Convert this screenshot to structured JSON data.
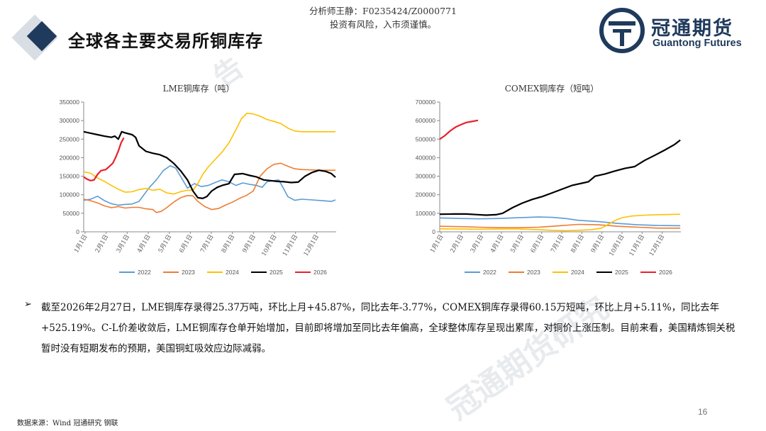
{
  "header": {
    "analyst": "分析师王静：F0235424/Z0000771",
    "risk_notice": "投资有风险，入市须谨慎。",
    "page_title": "全球各主要交易所铜库存"
  },
  "logo": {
    "name_cn": "冠通期货",
    "name_en": "Guantong Futures",
    "brand_color": "#1f3a5c"
  },
  "watermark": {
    "text_1": "告",
    "text_2": "冠通期货研究"
  },
  "series_colors": {
    "2022": "#5b9bd5",
    "2023": "#ed7d31",
    "2024": "#ffc000",
    "2025": "#000000",
    "2026": "#e8212b"
  },
  "chart_data": [
    {
      "type": "line",
      "title": "LME铜库存（吨）",
      "ylim": [
        0,
        350000
      ],
      "yticks": [
        "0",
        "50000",
        "100000",
        "150000",
        "200000",
        "250000",
        "300000",
        "350000"
      ],
      "xticks": [
        "1月1日",
        "2月1日",
        "3月1日",
        "4月1日",
        "5月1日",
        "6月1日",
        "7月1日",
        "8月1日",
        "9月1日",
        "10月1日",
        "11月1日",
        "12月1日"
      ],
      "x_days": 365,
      "legend_position": "bottom",
      "series": [
        {
          "name": "2022",
          "points": [
            [
              0,
              85000
            ],
            [
              10,
              88000
            ],
            [
              20,
              96000
            ],
            [
              30,
              84000
            ],
            [
              40,
              76000
            ],
            [
              50,
              72000
            ],
            [
              60,
              74000
            ],
            [
              70,
              75000
            ],
            [
              80,
              82000
            ],
            [
              95,
              120000
            ],
            [
              105,
              140000
            ],
            [
              115,
              165000
            ],
            [
              125,
              178000
            ],
            [
              133,
              172000
            ],
            [
              140,
              150000
            ],
            [
              150,
              118000
            ],
            [
              160,
              130000
            ],
            [
              170,
              122000
            ],
            [
              180,
              125000
            ],
            [
              190,
              133000
            ],
            [
              200,
              140000
            ],
            [
              210,
              135000
            ],
            [
              220,
              125000
            ],
            [
              230,
              132000
            ],
            [
              240,
              128000
            ],
            [
              250,
              125000
            ],
            [
              258,
              120000
            ],
            [
              265,
              135000
            ],
            [
              275,
              138000
            ],
            [
              282,
              140000
            ],
            [
              288,
              120000
            ],
            [
              295,
              95000
            ],
            [
              305,
              85000
            ],
            [
              315,
              88000
            ],
            [
              330,
              86000
            ],
            [
              345,
              84000
            ],
            [
              358,
              82000
            ],
            [
              364,
              86000
            ]
          ]
        },
        {
          "name": "2023",
          "points": [
            [
              0,
              88000
            ],
            [
              10,
              84000
            ],
            [
              20,
              78000
            ],
            [
              30,
              70000
            ],
            [
              40,
              65000
            ],
            [
              50,
              68000
            ],
            [
              60,
              64000
            ],
            [
              70,
              66000
            ],
            [
              80,
              66000
            ],
            [
              90,
              62000
            ],
            [
              100,
              60000
            ],
            [
              105,
              52000
            ],
            [
              112,
              55000
            ],
            [
              120,
              65000
            ],
            [
              130,
              80000
            ],
            [
              140,
              92000
            ],
            [
              150,
              98000
            ],
            [
              158,
              97000
            ],
            [
              165,
              82000
            ],
            [
              175,
              68000
            ],
            [
              185,
              60000
            ],
            [
              195,
              63000
            ],
            [
              205,
              72000
            ],
            [
              215,
              80000
            ],
            [
              225,
              90000
            ],
            [
              235,
              98000
            ],
            [
              245,
              110000
            ],
            [
              255,
              150000
            ],
            [
              265,
              170000
            ],
            [
              275,
              182000
            ],
            [
              285,
              185000
            ],
            [
              295,
              177000
            ],
            [
              305,
              170000
            ],
            [
              315,
              168000
            ],
            [
              330,
              167000
            ],
            [
              345,
              166000
            ],
            [
              364,
              166000
            ]
          ]
        },
        {
          "name": "2024",
          "points": [
            [
              0,
              162000
            ],
            [
              10,
              158000
            ],
            [
              20,
              145000
            ],
            [
              30,
              136000
            ],
            [
              40,
              125000
            ],
            [
              50,
              115000
            ],
            [
              60,
              107000
            ],
            [
              70,
              108000
            ],
            [
              80,
              114000
            ],
            [
              90,
              117000
            ],
            [
              100,
              112000
            ],
            [
              110,
              115000
            ],
            [
              120,
              105000
            ],
            [
              130,
              102000
            ],
            [
              140,
              108000
            ],
            [
              150,
              112000
            ],
            [
              158,
              112000
            ],
            [
              165,
              130000
            ],
            [
              172,
              155000
            ],
            [
              180,
              175000
            ],
            [
              190,
              195000
            ],
            [
              200,
              215000
            ],
            [
              210,
              240000
            ],
            [
              220,
              275000
            ],
            [
              228,
              305000
            ],
            [
              236,
              320000
            ],
            [
              245,
              318000
            ],
            [
              255,
              312000
            ],
            [
              265,
              303000
            ],
            [
              275,
              298000
            ],
            [
              285,
              292000
            ],
            [
              295,
              280000
            ],
            [
              305,
              272000
            ],
            [
              315,
              270000
            ],
            [
              330,
              270000
            ],
            [
              345,
              270000
            ],
            [
              364,
              270000
            ]
          ]
        },
        {
          "name": "2025",
          "points": [
            [
              0,
              270000
            ],
            [
              10,
              266000
            ],
            [
              20,
              262000
            ],
            [
              30,
              258000
            ],
            [
              40,
              255000
            ],
            [
              45,
              258000
            ],
            [
              50,
              250000
            ],
            [
              55,
              270000
            ],
            [
              60,
              267000
            ],
            [
              70,
              262000
            ],
            [
              75,
              255000
            ],
            [
              80,
              232000
            ],
            [
              90,
              217000
            ],
            [
              100,
              212000
            ],
            [
              110,
              208000
            ],
            [
              120,
              200000
            ],
            [
              130,
              185000
            ],
            [
              140,
              165000
            ],
            [
              150,
              140000
            ],
            [
              158,
              110000
            ],
            [
              165,
              92000
            ],
            [
              172,
              90000
            ],
            [
              178,
              95000
            ],
            [
              185,
              110000
            ],
            [
              193,
              120000
            ],
            [
              200,
              125000
            ],
            [
              210,
              130000
            ],
            [
              218,
              155000
            ],
            [
              230,
              157000
            ],
            [
              240,
              152000
            ],
            [
              250,
              148000
            ],
            [
              260,
              140000
            ],
            [
              270,
              138000
            ],
            [
              280,
              136000
            ],
            [
              290,
              135000
            ],
            [
              300,
              133000
            ],
            [
              310,
              134000
            ],
            [
              320,
              150000
            ],
            [
              330,
              160000
            ],
            [
              340,
              166000
            ],
            [
              350,
              163000
            ],
            [
              358,
              157000
            ],
            [
              364,
              147000
            ]
          ]
        },
        {
          "name": "2026",
          "points": [
            [
              0,
              148000
            ],
            [
              5,
              142000
            ],
            [
              10,
              138000
            ],
            [
              15,
              140000
            ],
            [
              20,
              155000
            ],
            [
              25,
              165000
            ],
            [
              32,
              168000
            ],
            [
              38,
              178000
            ],
            [
              42,
              185000
            ],
            [
              46,
              200000
            ],
            [
              50,
              218000
            ],
            [
              54,
              240000
            ],
            [
              58,
              253700
            ]
          ]
        }
      ]
    },
    {
      "type": "line",
      "title": "COMEX铜库存（短吨）",
      "ylim": [
        0,
        700000
      ],
      "yticks": [
        "0",
        "100000",
        "200000",
        "300000",
        "400000",
        "500000",
        "600000",
        "700000"
      ],
      "xticks": [
        "1月1日",
        "2月1日",
        "3月1日",
        "4月1日",
        "5月1日",
        "6月1日",
        "7月1日",
        "8月1日",
        "9月1日",
        "10月1日",
        "11月1日",
        "12月1日"
      ],
      "x_days": 365,
      "legend_position": "bottom",
      "series": [
        {
          "name": "2022",
          "points": [
            [
              0,
              75000
            ],
            [
              30,
              72000
            ],
            [
              60,
              70000
            ],
            [
              90,
              72000
            ],
            [
              120,
              76000
            ],
            [
              150,
              80000
            ],
            [
              170,
              78000
            ],
            [
              190,
              72000
            ],
            [
              210,
              62000
            ],
            [
              240,
              55000
            ],
            [
              270,
              45000
            ],
            [
              300,
              38000
            ],
            [
              330,
              34000
            ],
            [
              364,
              33000
            ]
          ]
        },
        {
          "name": "2023",
          "points": [
            [
              0,
              30000
            ],
            [
              30,
              28000
            ],
            [
              60,
              25000
            ],
            [
              90,
              22000
            ],
            [
              120,
              22000
            ],
            [
              150,
              25000
            ],
            [
              180,
              32000
            ],
            [
              210,
              40000
            ],
            [
              240,
              38000
            ],
            [
              270,
              30000
            ],
            [
              300,
              25000
            ],
            [
              330,
              20000
            ],
            [
              364,
              20000
            ]
          ]
        },
        {
          "name": "2024",
          "points": [
            [
              0,
              16000
            ],
            [
              30,
              15000
            ],
            [
              60,
              14000
            ],
            [
              90,
              15000
            ],
            [
              120,
              15000
            ],
            [
              150,
              12000
            ],
            [
              170,
              8000
            ],
            [
              190,
              6000
            ],
            [
              210,
              8000
            ],
            [
              230,
              12000
            ],
            [
              245,
              20000
            ],
            [
              255,
              40000
            ],
            [
              265,
              60000
            ],
            [
              275,
              75000
            ],
            [
              290,
              85000
            ],
            [
              310,
              90000
            ],
            [
              330,
              92000
            ],
            [
              364,
              95000
            ]
          ]
        },
        {
          "name": "2025",
          "points": [
            [
              0,
              95000
            ],
            [
              20,
              96000
            ],
            [
              40,
              96000
            ],
            [
              55,
              93000
            ],
            [
              70,
              90000
            ],
            [
              85,
              92000
            ],
            [
              95,
              100000
            ],
            [
              110,
              130000
            ],
            [
              125,
              155000
            ],
            [
              140,
              175000
            ],
            [
              155,
              190000
            ],
            [
              170,
              210000
            ],
            [
              185,
              230000
            ],
            [
              200,
              250000
            ],
            [
              215,
              262000
            ],
            [
              225,
              270000
            ],
            [
              235,
              300000
            ],
            [
              250,
              312000
            ],
            [
              265,
              328000
            ],
            [
              280,
              342000
            ],
            [
              295,
              352000
            ],
            [
              310,
              385000
            ],
            [
              325,
              412000
            ],
            [
              340,
              440000
            ],
            [
              355,
              470000
            ],
            [
              364,
              495000
            ]
          ]
        },
        {
          "name": "2026",
          "points": [
            [
              0,
              500000
            ],
            [
              8,
              520000
            ],
            [
              16,
              545000
            ],
            [
              24,
              565000
            ],
            [
              32,
              578000
            ],
            [
              40,
              590000
            ],
            [
              48,
              595000
            ],
            [
              56,
              600000
            ],
            [
              58,
              601500
            ]
          ]
        }
      ]
    }
  ],
  "commentary": {
    "bullet": "➢",
    "text": "截至2026年2月27日，LME铜库存录得25.37万吨，环比上月+45.87%，同比去年-3.77%，COMEX铜库存录得60.15万短吨，环比上月+5.11%，同比去年+525.19%。C-L价差收敛后，LME铜库存仓单开始增加，目前即将增加至同比去年偏高，全球整体库存呈现出累库，对铜价上涨压制。目前来看，美国精炼铜关税暂时没有短期发布的预期，美国铜虹吸效应边际减弱。"
  },
  "footer": {
    "source": "数据来源：Wind 冠通研究 钢联",
    "page_number": "16"
  }
}
